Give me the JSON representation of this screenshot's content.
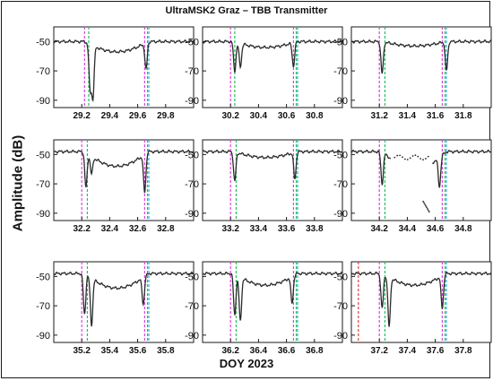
{
  "title": "UltraMSK2 Graz – TBB Transmitter",
  "xlabel": "DOY 2023",
  "ylabel": "Amplitude (dB)",
  "colors": {
    "trace": "#2b2b2b",
    "magenta": "#e040e0",
    "green": "#20c060",
    "cyan": "#40b8e0",
    "red": "#e04040"
  },
  "chart_data": [
    {
      "type": "line",
      "xlim": [
        29.0,
        30.0
      ],
      "ylim": [
        -95,
        -40
      ],
      "yticks": [
        -50,
        -70,
        -90
      ],
      "xticks": [
        29.2,
        29.4,
        29.6,
        29.8
      ],
      "xtick_labels": [
        "29.2",
        "29.4",
        "29.6",
        "29.8"
      ],
      "markers": [
        {
          "x": 29.22,
          "color": "magenta"
        },
        {
          "x": 29.25,
          "color": "green"
        },
        {
          "x": 29.65,
          "color": "magenta"
        },
        {
          "x": 29.67,
          "color": "green"
        },
        {
          "x": 29.68,
          "color": "cyan"
        }
      ],
      "trace": {
        "base": -50,
        "mid": -57,
        "dips": [
          {
            "x": 29.26,
            "d": -80
          },
          {
            "x": 29.28,
            "d": -85
          },
          {
            "x": 29.66,
            "d": -68
          }
        ]
      }
    },
    {
      "type": "line",
      "xlim": [
        30.0,
        31.0
      ],
      "ylim": [
        -95,
        -40
      ],
      "yticks": [
        -50,
        -70,
        -90
      ],
      "xticks": [
        30.2,
        30.4,
        30.6,
        30.8
      ],
      "xtick_labels": [
        "30.2",
        "30.4",
        "30.6",
        "30.8"
      ],
      "markers": [
        {
          "x": 30.2,
          "color": "magenta"
        },
        {
          "x": 30.23,
          "color": "green"
        },
        {
          "x": 30.65,
          "color": "magenta"
        },
        {
          "x": 30.67,
          "color": "green"
        },
        {
          "x": 30.68,
          "color": "cyan"
        }
      ],
      "trace": {
        "base": -50,
        "mid": -54,
        "dips": [
          {
            "x": 30.23,
            "d": -70
          },
          {
            "x": 30.27,
            "d": -66
          },
          {
            "x": 30.65,
            "d": -66
          }
        ]
      }
    },
    {
      "type": "line",
      "xlim": [
        31.0,
        32.0
      ],
      "ylim": [
        -95,
        -40
      ],
      "yticks": [
        -50,
        -70,
        -90
      ],
      "xticks": [
        31.2,
        31.4,
        31.6,
        31.8
      ],
      "xtick_labels": [
        "31.2",
        "31.4",
        "31.6",
        "31.8"
      ],
      "markers": [
        {
          "x": 31.2,
          "color": "magenta"
        },
        {
          "x": 31.24,
          "color": "green"
        },
        {
          "x": 31.65,
          "color": "magenta"
        },
        {
          "x": 31.67,
          "color": "green"
        },
        {
          "x": 31.68,
          "color": "cyan"
        }
      ],
      "trace": {
        "base": -50,
        "mid": -53,
        "dips": [
          {
            "x": 31.22,
            "d": -72
          },
          {
            "x": 31.68,
            "d": -70
          }
        ]
      }
    },
    {
      "type": "line",
      "xlim": [
        32.0,
        33.0
      ],
      "ylim": [
        -95,
        -40
      ],
      "yticks": [
        -50,
        -70,
        -90
      ],
      "xticks": [
        32.2,
        32.4,
        32.6,
        32.8
      ],
      "xtick_labels": [
        "32.2",
        "32.4",
        "32.6",
        "32.8"
      ],
      "markers": [
        {
          "x": 32.2,
          "color": "magenta"
        },
        {
          "x": 32.24,
          "color": "green"
        },
        {
          "x": 32.65,
          "color": "magenta"
        },
        {
          "x": 32.67,
          "color": "green"
        },
        {
          "x": 32.68,
          "color": "cyan"
        }
      ],
      "trace": {
        "base": -48,
        "mid": -58,
        "dips": [
          {
            "x": 32.23,
            "d": -72
          },
          {
            "x": 32.27,
            "d": -60
          },
          {
            "x": 32.65,
            "d": -74
          }
        ]
      }
    },
    {
      "type": "line",
      "xlim": [
        33.0,
        34.0
      ],
      "ylim": [
        -95,
        -40
      ],
      "yticks": [
        -50,
        -70,
        -90
      ],
      "xticks": [
        33.2,
        33.4,
        33.6,
        33.8
      ],
      "xtick_labels": [
        "33.2",
        "33.4",
        "33.6",
        "33.8"
      ],
      "markers": [
        {
          "x": 33.2,
          "color": "magenta"
        },
        {
          "x": 33.24,
          "color": "green"
        },
        {
          "x": 33.65,
          "color": "magenta"
        },
        {
          "x": 33.67,
          "color": "green"
        },
        {
          "x": 33.68,
          "color": "cyan"
        }
      ],
      "trace": {
        "base": -48,
        "mid": -52,
        "dips": [
          {
            "x": 33.23,
            "d": -68
          },
          {
            "x": 33.66,
            "d": -66
          }
        ]
      }
    },
    {
      "type": "line",
      "xlim": [
        34.0,
        35.0
      ],
      "ylim": [
        -95,
        -40
      ],
      "yticks": [
        -50,
        -70,
        -90
      ],
      "xticks": [
        34.2,
        34.4,
        34.6,
        34.8
      ],
      "xtick_labels": [
        "34.2",
        "34.4",
        "34.6",
        "34.8"
      ],
      "markers": [
        {
          "x": 34.2,
          "color": "magenta"
        },
        {
          "x": 34.24,
          "color": "green"
        },
        {
          "x": 34.65,
          "color": "magenta"
        },
        {
          "x": 34.67,
          "color": "green"
        },
        {
          "x": 34.68,
          "color": "cyan"
        }
      ],
      "trace": {
        "base": -48,
        "mid": -60,
        "gap": [
          34.28,
          34.58
        ],
        "dips": [
          {
            "x": 34.22,
            "d": -70
          },
          {
            "x": 34.63,
            "d": -68
          }
        ]
      }
    },
    {
      "type": "line",
      "xlim": [
        35.0,
        36.0
      ],
      "ylim": [
        -95,
        -40
      ],
      "yticks": [
        -50,
        -70,
        -90
      ],
      "xticks": [
        35.2,
        35.4,
        35.6,
        35.8
      ],
      "xtick_labels": [
        "35.2",
        "35.4",
        "35.6",
        "35.8"
      ],
      "markers": [
        {
          "x": 35.2,
          "color": "magenta"
        },
        {
          "x": 35.24,
          "color": "green"
        },
        {
          "x": 35.65,
          "color": "magenta"
        },
        {
          "x": 35.67,
          "color": "green"
        },
        {
          "x": 35.68,
          "color": "cyan"
        }
      ],
      "trace": {
        "base": -48,
        "mid": -58,
        "dips": [
          {
            "x": 35.22,
            "d": -76
          },
          {
            "x": 35.27,
            "d": -80
          },
          {
            "x": 35.64,
            "d": -66
          }
        ]
      }
    },
    {
      "type": "line",
      "xlim": [
        36.0,
        37.0
      ],
      "ylim": [
        -95,
        -40
      ],
      "yticks": [
        -50,
        -70,
        -90
      ],
      "xticks": [
        36.2,
        36.4,
        36.6,
        36.8
      ],
      "xtick_labels": [
        "36.2",
        "36.4",
        "36.6",
        "36.8"
      ],
      "markers": [
        {
          "x": 36.2,
          "color": "magenta"
        },
        {
          "x": 36.24,
          "color": "green"
        },
        {
          "x": 36.65,
          "color": "magenta"
        },
        {
          "x": 36.67,
          "color": "green"
        },
        {
          "x": 36.68,
          "color": "cyan"
        }
      ],
      "trace": {
        "base": -48,
        "mid": -56,
        "dips": [
          {
            "x": 36.23,
            "d": -76
          },
          {
            "x": 36.27,
            "d": -78
          },
          {
            "x": 36.64,
            "d": -66
          }
        ]
      }
    },
    {
      "type": "line",
      "xlim": [
        37.0,
        38.0
      ],
      "ylim": [
        -95,
        -40
      ],
      "yticks": [
        -50,
        -70,
        -90
      ],
      "xticks": [
        37.2,
        37.4,
        37.6,
        37.8
      ],
      "xtick_labels": [
        "37.2",
        "37.4",
        "37.6",
        "37.8"
      ],
      "markers": [
        {
          "x": 37.05,
          "color": "red"
        },
        {
          "x": 37.2,
          "color": "magenta"
        },
        {
          "x": 37.24,
          "color": "green"
        },
        {
          "x": 37.65,
          "color": "magenta"
        },
        {
          "x": 37.67,
          "color": "green"
        },
        {
          "x": 37.68,
          "color": "cyan"
        }
      ],
      "trace": {
        "base": -48,
        "mid": -56,
        "dips": [
          {
            "x": 37.22,
            "d": -72
          },
          {
            "x": 37.27,
            "d": -82
          },
          {
            "x": 37.65,
            "d": -70
          }
        ]
      }
    }
  ]
}
